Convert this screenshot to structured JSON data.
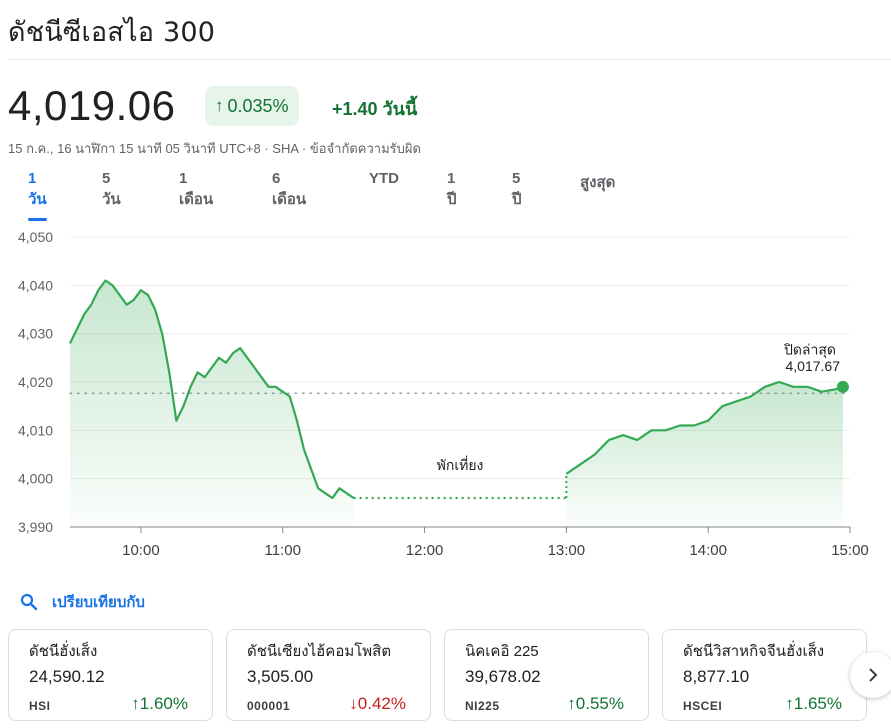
{
  "header": {
    "title": "ดัชนีซีเอสไอ 300"
  },
  "quote": {
    "price": "4,019.06",
    "pct_change": "0.035%",
    "abs_change": "+1.40 วันนี้",
    "meta": "15 ก.ค., 16 นาฬิกา 15 นาที 05 วินาที UTC+8 · SHA · ข้อจำกัดความรับผิด",
    "accent_up": "#137333",
    "accent_down": "#c5221f"
  },
  "tabs": [
    {
      "label": "1 วัน",
      "active": true
    },
    {
      "label": "5 วัน"
    },
    {
      "label": "1 เดือน"
    },
    {
      "label": "6 เดือน"
    },
    {
      "label": "YTD"
    },
    {
      "label": "1 ปี"
    },
    {
      "label": "5 ปี"
    },
    {
      "label": "สูงสุด"
    }
  ],
  "chart_data": {
    "type": "area",
    "ylim": [
      3990,
      4050
    ],
    "yticks": [
      "4,050",
      "4,040",
      "4,030",
      "4,020",
      "4,010",
      "4,000",
      "3,990"
    ],
    "xticks": [
      "10:00",
      "11:00",
      "12:00",
      "13:00",
      "14:00",
      "15:00"
    ],
    "prev_close_label": "ปิดล่าสุด",
    "prev_close_value": "4,017.67",
    "prev_close": 4017.67,
    "break_label": "พักเที่ยง",
    "line_color": "#34a853",
    "x_units": "time (hours)",
    "series_morning": [
      [
        9.5,
        4028
      ],
      [
        9.55,
        4031
      ],
      [
        9.6,
        4034
      ],
      [
        9.65,
        4036
      ],
      [
        9.7,
        4039
      ],
      [
        9.75,
        4041
      ],
      [
        9.8,
        4040
      ],
      [
        9.85,
        4038
      ],
      [
        9.9,
        4036
      ],
      [
        9.95,
        4037
      ],
      [
        10.0,
        4039
      ],
      [
        10.05,
        4038
      ],
      [
        10.1,
        4035
      ],
      [
        10.15,
        4030
      ],
      [
        10.2,
        4022
      ],
      [
        10.25,
        4012
      ],
      [
        10.3,
        4015
      ],
      [
        10.35,
        4019
      ],
      [
        10.4,
        4022
      ],
      [
        10.45,
        4021
      ],
      [
        10.5,
        4023
      ],
      [
        10.55,
        4025
      ],
      [
        10.6,
        4024
      ],
      [
        10.65,
        4026
      ],
      [
        10.7,
        4027
      ],
      [
        10.75,
        4025
      ],
      [
        10.8,
        4023
      ],
      [
        10.85,
        4021
      ],
      [
        10.9,
        4019
      ],
      [
        10.95,
        4019
      ],
      [
        11.0,
        4018
      ],
      [
        11.05,
        4017
      ],
      [
        11.1,
        4012
      ],
      [
        11.15,
        4006
      ],
      [
        11.2,
        4002
      ],
      [
        11.25,
        3998
      ],
      [
        11.3,
        3997
      ],
      [
        11.35,
        3996
      ],
      [
        11.4,
        3998
      ],
      [
        11.45,
        3997
      ],
      [
        11.5,
        3996
      ]
    ],
    "series_lunch": [
      [
        11.5,
        3996
      ],
      [
        13.0,
        3996
      ]
    ],
    "series_afternoon": [
      [
        13.0,
        4001
      ],
      [
        13.1,
        4003
      ],
      [
        13.2,
        4005
      ],
      [
        13.3,
        4008
      ],
      [
        13.4,
        4009
      ],
      [
        13.5,
        4008
      ],
      [
        13.6,
        4010
      ],
      [
        13.7,
        4010
      ],
      [
        13.8,
        4011
      ],
      [
        13.9,
        4011
      ],
      [
        14.0,
        4012
      ],
      [
        14.1,
        4015
      ],
      [
        14.2,
        4016
      ],
      [
        14.3,
        4017
      ],
      [
        14.4,
        4019
      ],
      [
        14.5,
        4020
      ],
      [
        14.6,
        4019
      ],
      [
        14.7,
        4019
      ],
      [
        14.8,
        4018
      ],
      [
        14.9,
        4018.5
      ],
      [
        14.95,
        4019
      ]
    ]
  },
  "compare": {
    "label": "เปรียบเทียบกับ"
  },
  "cards": [
    {
      "name": "ดัชนีฮั่งเส็ง",
      "value": "24,590.12",
      "symbol": "HSI",
      "change": "1.60%",
      "dir": "up"
    },
    {
      "name": "ดัชนีเซียงไฮ้คอมโพสิต",
      "value": "3,505.00",
      "symbol": "000001",
      "change": "0.42%",
      "dir": "down"
    },
    {
      "name": "นิคเคอิ 225",
      "value": "39,678.02",
      "symbol": "NI225",
      "change": "0.55%",
      "dir": "up"
    },
    {
      "name": "ดัชนีวิสาหกิจจีนฮั่งเส็ง",
      "value": "8,877.10",
      "symbol": "HSCEI",
      "change": "1.65%",
      "dir": "up"
    }
  ]
}
